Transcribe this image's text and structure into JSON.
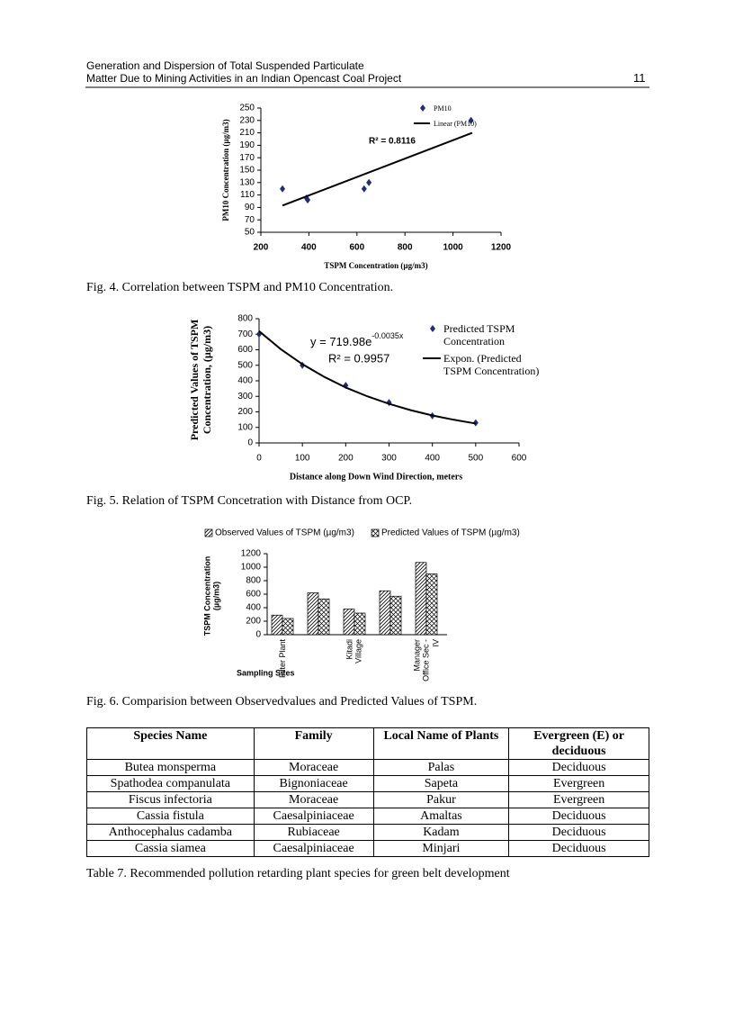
{
  "header": {
    "title_lines": [
      "Generation and Dispersion of Total Suspended Particulate",
      "Matter Due to Mining Activities in an Indian Opencast Coal Project"
    ],
    "page_number": "11"
  },
  "chart_data": [
    {
      "type": "scatter",
      "caption": "Fig. 4. Correlation between TSPM and PM10 Concentration.",
      "xlabel": "TSPM Concentration (µg/m3)",
      "ylabel": "PM10 Concentration (µg/m3)",
      "xlim": [
        200,
        1200
      ],
      "xticks": [
        200,
        400,
        600,
        800,
        1000,
        1200
      ],
      "ylim": [
        50,
        250
      ],
      "yticks": [
        50,
        70,
        90,
        110,
        130,
        150,
        170,
        190,
        210,
        230,
        250
      ],
      "series": [
        {
          "name": "PM10",
          "color": "#1f2d7a",
          "x": [
            290,
            390,
            395,
            630,
            650,
            1075
          ],
          "values": [
            120,
            105,
            102,
            120,
            130,
            230
          ]
        },
        {
          "name": "Linear (PM10)",
          "color": "#000000",
          "line": true,
          "x": [
            290,
            1080
          ],
          "values": [
            93,
            210
          ]
        }
      ],
      "annotations": {
        "r_squared": "R² = 0.8116"
      }
    },
    {
      "type": "scatter",
      "caption": "Fig. 5. Relation of TSPM Concetration with Distance from OCP.",
      "xlabel": "Distance along Down Wind Direction, meters",
      "ylabel": "Predicted Values of TSPM Concentration, (µg/m3)",
      "xlim": [
        0,
        600
      ],
      "xticks": [
        0,
        100,
        200,
        300,
        400,
        500,
        600
      ],
      "ylim": [
        0,
        800
      ],
      "yticks": [
        0,
        100,
        200,
        300,
        400,
        500,
        600,
        700,
        800
      ],
      "series": [
        {
          "name": "Predicted TSPM Concentration",
          "color": "#1f2d7a",
          "x": [
            0,
            100,
            200,
            300,
            400,
            500
          ],
          "values": [
            700,
            500,
            370,
            260,
            175,
            130
          ]
        },
        {
          "name": "Expon. (Predicted TSPM Concentration)",
          "color": "#000000",
          "line": true,
          "x": [
            0,
            50,
            100,
            150,
            200,
            250,
            300,
            350,
            400,
            450,
            500
          ],
          "values": [
            720,
            604,
            507,
            426,
            357,
            300,
            252,
            211,
            177,
            149,
            125
          ]
        }
      ],
      "annotations": {
        "equation": "y = 719.98e",
        "exponent": "-0.0035x",
        "r_squared": "R² = 0.9957"
      }
    },
    {
      "type": "bar",
      "caption": "Fig. 6. Comparision between Observedvalues and Predicted Values of TSPM.",
      "xlabel": "Sampling Sites",
      "ylabel": "TSPM Concentration (µg/m3)",
      "categories": [
        "Filter Plant",
        null,
        "Kitadi Village",
        null,
        "Manager Office Sec -IV"
      ],
      "ylim": [
        0,
        1200
      ],
      "yticks": [
        0,
        200,
        400,
        600,
        800,
        1000,
        1200
      ],
      "series": [
        {
          "name": "Observed Values of TSPM (µg/m3)",
          "pattern": "diagonal",
          "color": "#000000",
          "values": [
            290,
            620,
            380,
            650,
            1070
          ]
        },
        {
          "name": "Predicted Values of TSPM (µg/m3)",
          "pattern": "crosshatch",
          "color": "#000000",
          "values": [
            240,
            530,
            320,
            570,
            900
          ]
        }
      ]
    }
  ],
  "table": {
    "headers": [
      "Species Name",
      "Family",
      "Local Name of Plants",
      "Evergreen (E) or deciduous"
    ],
    "rows": [
      [
        "Butea monsperma",
        "Moraceae",
        "Palas",
        "Deciduous"
      ],
      [
        "Spathodea companulata",
        "Bignoniaceae",
        "Sapeta",
        "Evergreen"
      ],
      [
        "Fiscus infectoria",
        "Moraceae",
        "Pakur",
        "Evergreen"
      ],
      [
        "Cassia fistula",
        "Caesalpiniaceae",
        "Amaltas",
        "Deciduous"
      ],
      [
        "Anthocephalus cadamba",
        "Rubiaceae",
        "Kadam",
        "Deciduous"
      ],
      [
        "Cassia siamea",
        "Caesalpiniaceae",
        "Minjari",
        "Deciduous"
      ]
    ],
    "caption": "Table 7. Recommended pollution retarding plant species for green belt development"
  }
}
